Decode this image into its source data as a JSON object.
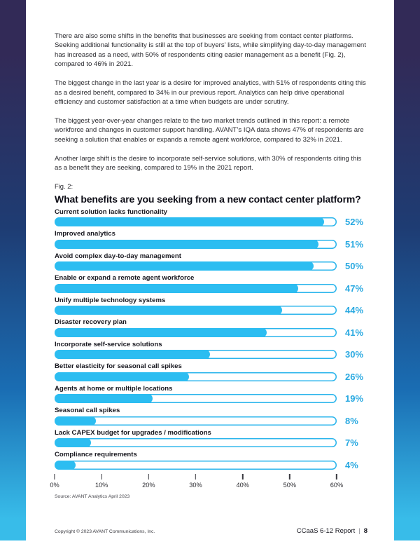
{
  "page": {
    "paragraphs": [
      "There are also some shifts in the benefits that businesses are seeking from contact center platforms. Seeking additional functionality is still at the top of buyers’ lists, while simplifying day-to-day management has increased as a need, with 50% of respondents citing easier management as a benefit (Fig. 2), compared to 46% in 2021.",
      "The biggest change in the last year is a desire for improved analytics, with 51% of respondents citing this as a desired benefit, compared to 34% in our previous report. Analytics can help drive operational efficiency and customer satisfaction at a time when budgets are under scrutiny.",
      "The biggest year-over-year changes relate to the two market trends outlined in this report: a remote workforce and changes in customer support handling. AVANT’s IQA data shows 47% of respondents are seeking a solution that enables or expands a remote agent workforce, compared to 32% in 2021.",
      "Another large shift is the desire to incorporate self-service solutions, with 30% of respondents citing this as a benefit they are seeking, compared to 19% in the 2021 report."
    ],
    "fig_label": "Fig. 2:",
    "footer": {
      "copyright": "Copyright © 2023 AVANT Communications, Inc.",
      "report_name": "CCaaS 6-12 Report",
      "separator": "|",
      "page_number": "8"
    }
  },
  "chart_data": {
    "type": "bar",
    "orientation": "horizontal",
    "title": "What benefits are you seeking from a new contact center platform?",
    "categories": [
      "Current solution lacks functionality",
      "Improved analytics",
      "Avoid complex day-to-day management",
      "Enable or expand a remote agent workforce",
      "Unify multiple technology systems",
      "Disaster recovery plan",
      "Incorporate self-service solutions",
      "Better elasticity for seasonal call spikes",
      "Agents at home or multiple locations",
      "Seasonal call spikes",
      "Lack CAPEX budget for upgrades / modifications",
      "Compliance requirements"
    ],
    "values": [
      52,
      51,
      50,
      47,
      44,
      41,
      30,
      26,
      19,
      8,
      7,
      4
    ],
    "value_suffix": "%",
    "x_ticks": [
      "0%",
      "10%",
      "20%",
      "30%",
      "40%",
      "50%",
      "60%"
    ],
    "xlim": [
      0,
      60
    ],
    "bar_scale_max": 54.5,
    "grid": false,
    "legend": false,
    "source": "Source: AVANT Analytics April 2023",
    "colors": {
      "bar_fill": "#2cbdf1",
      "bar_outline": "#2bb5ec",
      "value_label": "#29a9e1"
    }
  },
  "frame_colors": {
    "gradient_top": "#322a57",
    "gradient_upper_mid": "#1e3c73",
    "gradient_lower_mid": "#1a6db3",
    "gradient_bottom": "#38bce9"
  }
}
